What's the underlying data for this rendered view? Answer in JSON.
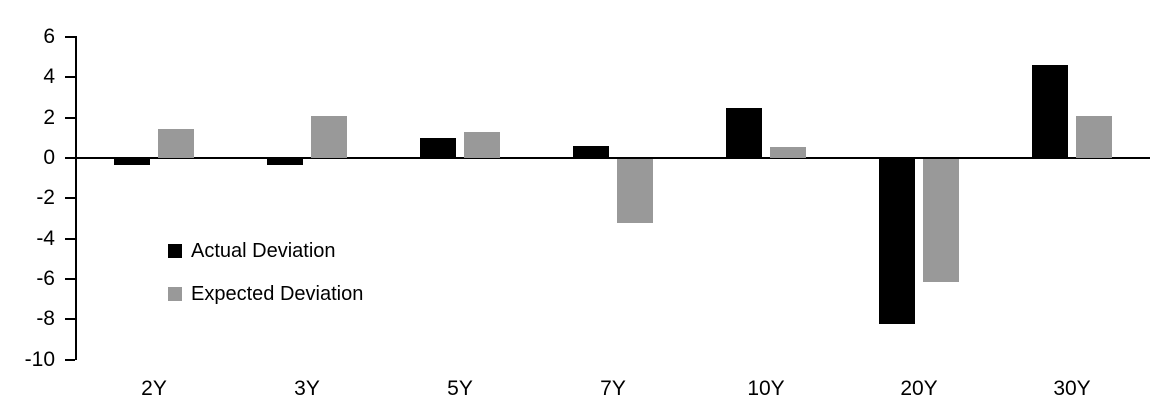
{
  "chart_data": {
    "type": "bar",
    "title": "",
    "xlabel": "",
    "ylabel": "",
    "categories": [
      "2Y",
      "3Y",
      "5Y",
      "7Y",
      "10Y",
      "20Y",
      "30Y"
    ],
    "series": [
      {
        "name": "Actual Deviation",
        "color": "#000000",
        "values": [
          -0.3,
          -0.3,
          1.0,
          0.6,
          2.5,
          -8.2,
          4.6
        ]
      },
      {
        "name": "Expected Deviation",
        "color": "#999999",
        "values": [
          1.45,
          2.1,
          1.3,
          -3.2,
          0.55,
          -6.1,
          2.1
        ]
      }
    ],
    "ylim": [
      -10,
      6
    ],
    "yticks": [
      6,
      4,
      2,
      0,
      -2,
      -4,
      -6,
      -8,
      -10
    ],
    "grid": false,
    "legend_position": "inside-left",
    "axis_color": "#000000",
    "background_color": "#ffffff"
  }
}
